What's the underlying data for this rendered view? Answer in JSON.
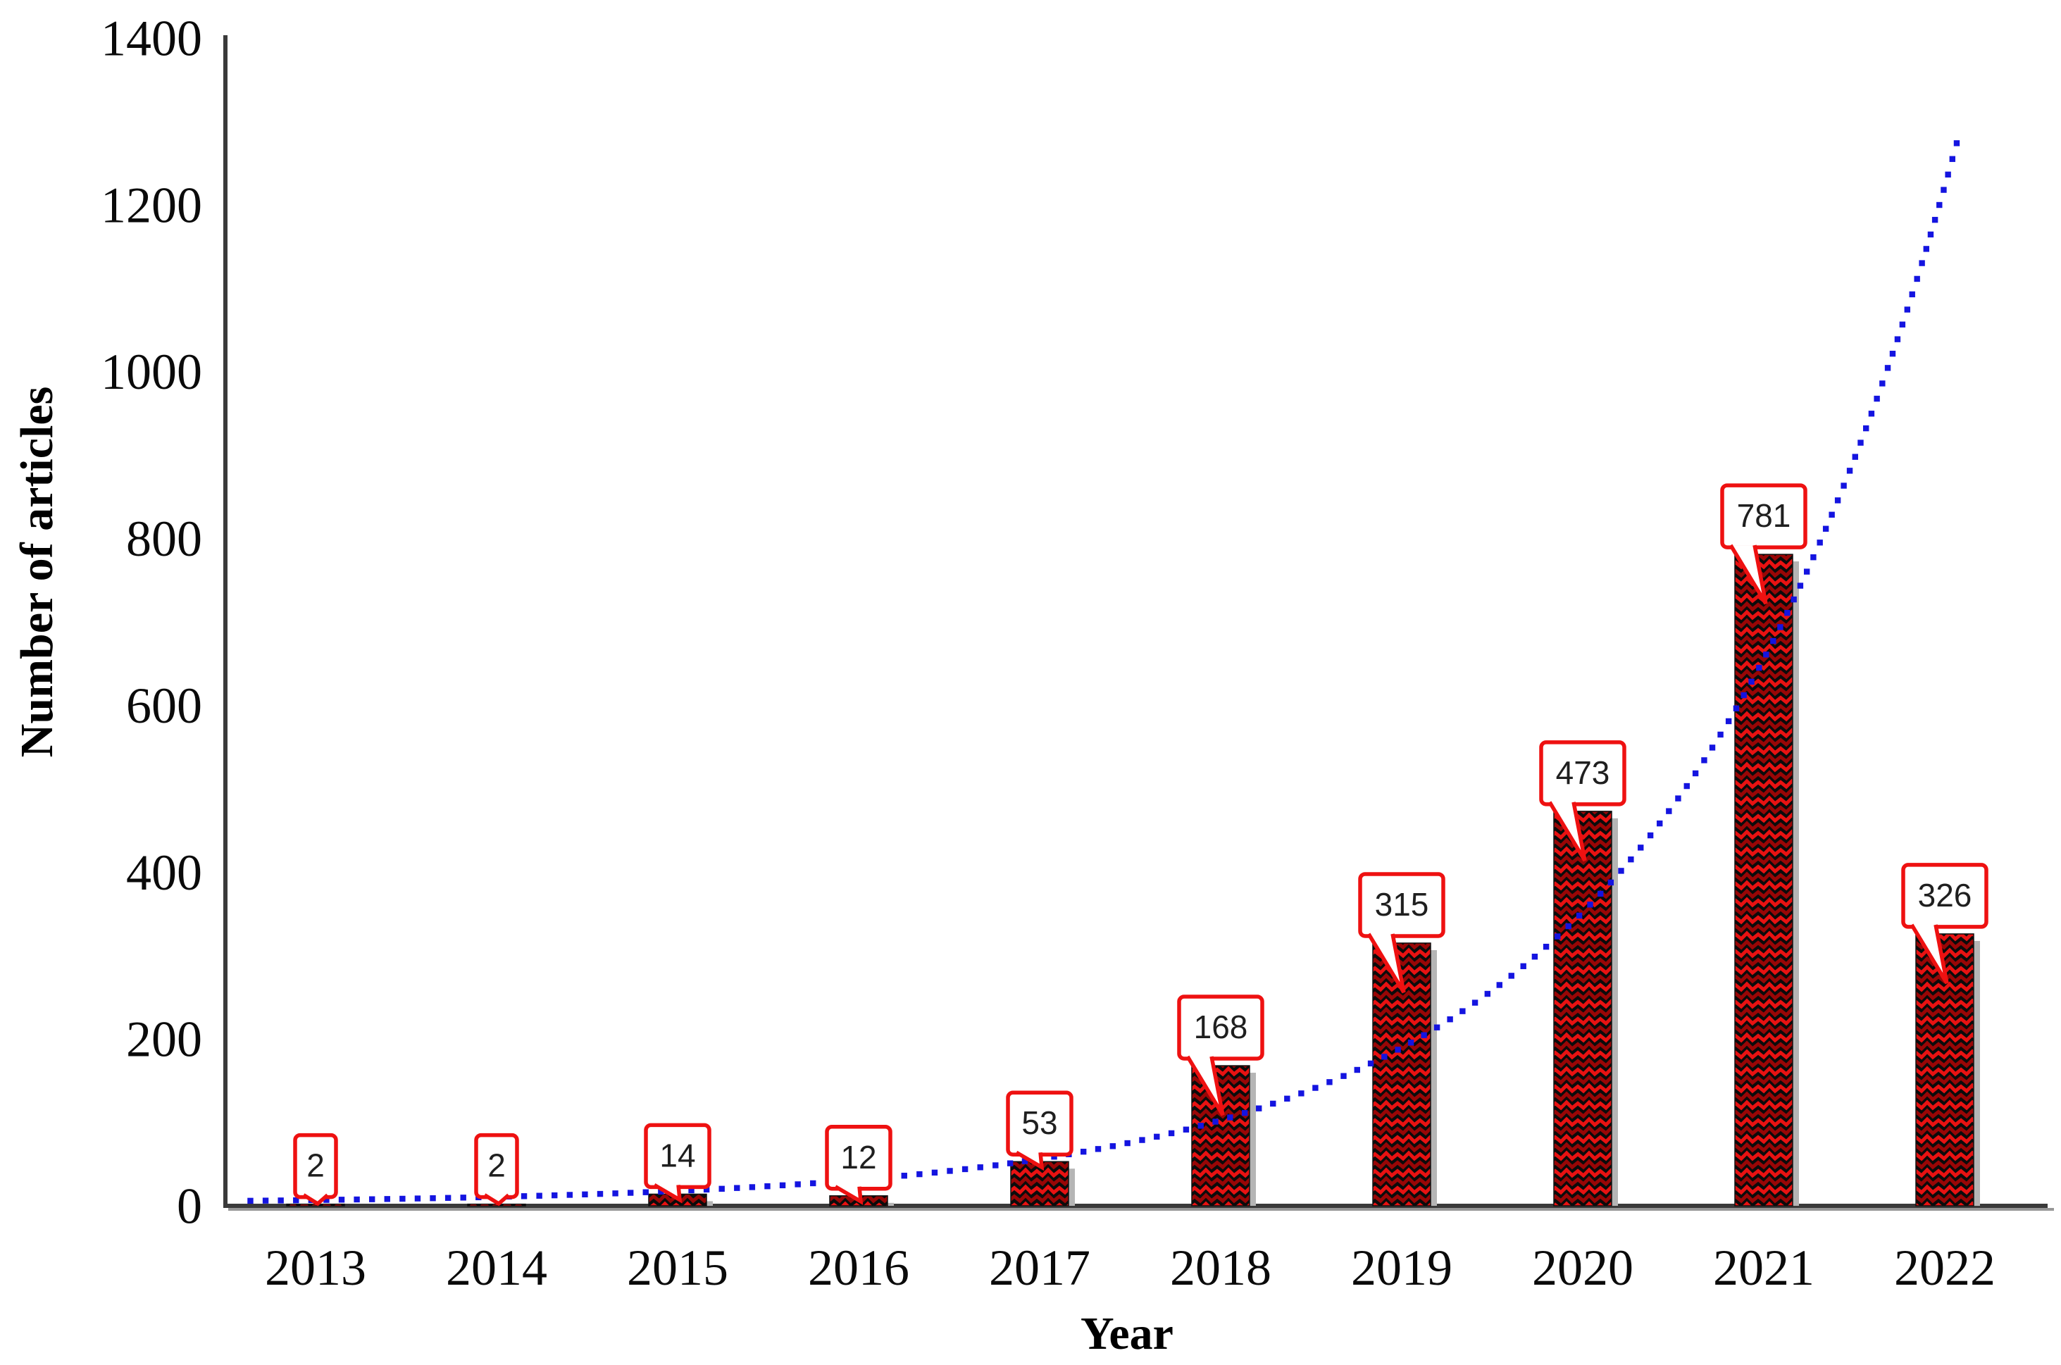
{
  "chart_data": {
    "type": "bar",
    "title": "",
    "categories": [
      "2013",
      "2014",
      "2015",
      "2016",
      "2017",
      "2018",
      "2019",
      "2020",
      "2021",
      "2022"
    ],
    "values": [
      2,
      2,
      14,
      12,
      53,
      168,
      315,
      473,
      781,
      326
    ],
    "data_labels": [
      "2",
      "2",
      "14",
      "12",
      "53",
      "168",
      "315",
      "473",
      "781",
      "326"
    ],
    "xlabel": "Year",
    "ylabel": "Number of articles",
    "y_ticks": [
      0,
      200,
      400,
      600,
      800,
      1000,
      1200,
      1400
    ],
    "y_tick_labels": [
      "0",
      "200",
      "400",
      "600",
      "800",
      "1000",
      "1200",
      "1400"
    ],
    "ylim": [
      0,
      1400
    ],
    "grid": false,
    "legend": "none",
    "bar_texture": "red-herringbone-on-black",
    "trendline": {
      "type": "exponential",
      "style": "dotted",
      "a": 4.4,
      "b": 0.625,
      "end_value_estimate": 1280
    },
    "colors": {
      "background": "#ffffff",
      "bar_background": "#0b0b0b",
      "bar_pattern_red": "#e81212",
      "bar_pattern_dark_red": "#990606",
      "bar_shadow": "#b5b5b5",
      "axis_line": "#3a3a3a",
      "axis_shadow": "#8c8c8c",
      "tick_text": "#0a0a0a",
      "callout_border": "#ee1111",
      "callout_fill": "#ffffff",
      "callout_text": "#1f1f1f",
      "trend_dot": "#1414e0"
    }
  }
}
